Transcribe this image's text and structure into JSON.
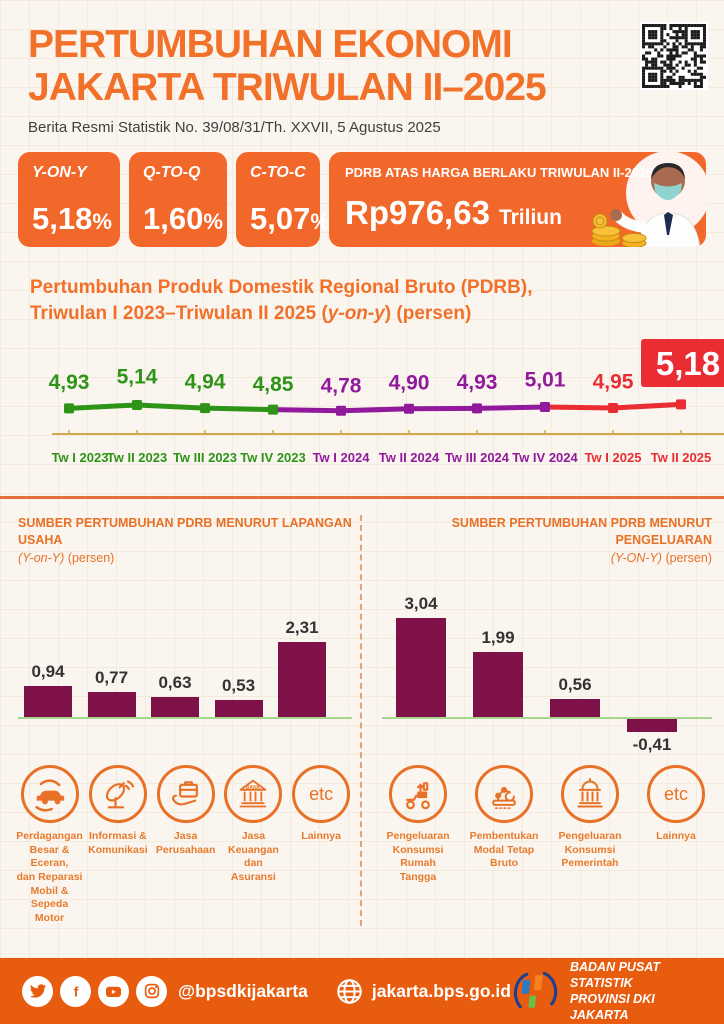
{
  "header": {
    "title_line1": "PERTUMBUHAN EKONOMI",
    "title_line2": "JAKARTA TRIWULAN II–2025",
    "subtitle": "Berita Resmi Statistik No. 39/08/31/Th. XXVII, 5 Agustus 2025"
  },
  "stats": [
    {
      "label": "Y-ON-Y",
      "value": "5,18",
      "suffix": "%"
    },
    {
      "label": "Q-TO-Q",
      "value": "1,60",
      "suffix": "%"
    },
    {
      "label": "C-TO-C",
      "value": "5,07",
      "suffix": "%"
    }
  ],
  "pdrb": {
    "label": "PDRB ATAS HARGA BERLAKU TRIWULAN II-2025",
    "amount": "Rp976,63",
    "unit": "Triliun"
  },
  "line_section": {
    "title_line1": "Pertumbuhan Produk Domestik Regional Bruto (PDRB),",
    "title_line2_pre": "Triwulan I 2023–Triwulan II 2025 (",
    "title_line2_italic": "y-on-y",
    "title_line2_post": ") (persen)"
  },
  "colors": {
    "accent_orange": "#f1702a",
    "footer_orange": "#e85c0f",
    "bar_maroon": "#7d1148",
    "green_2023": "#2e9418",
    "purple_2024": "#911a9c",
    "red_2025": "#ea2c33",
    "axis_tan": "#d0a84e",
    "baseline_green": "#a9d68f"
  },
  "chart_data": [
    {
      "type": "line",
      "title": "Pertumbuhan Produk Domestik Regional Bruto (PDRB), Triwulan I 2023–Triwulan II 2025 (y-on-y) (persen)",
      "categories": [
        "Tw I 2023",
        "Tw II 2023",
        "Tw III 2023",
        "Tw IV 2023",
        "Tw I 2024",
        "Tw II 2024",
        "Tw III 2024",
        "Tw IV 2024",
        "Tw I 2025",
        "Tw II 2025"
      ],
      "values": [
        4.93,
        5.14,
        4.94,
        4.85,
        4.78,
        4.9,
        4.93,
        5.01,
        4.95,
        5.18
      ],
      "labels": [
        "4,93",
        "5,14",
        "4,94",
        "4,85",
        "4,78",
        "4,90",
        "4,93",
        "5,01",
        "4,95",
        "5,18"
      ],
      "groups": [
        {
          "name": "2023",
          "from": 0,
          "to": 3,
          "color": "#2e9418"
        },
        {
          "name": "2024",
          "from": 3,
          "to": 7,
          "color": "#911a9c"
        },
        {
          "name": "2025",
          "from": 7,
          "to": 9,
          "color": "#ea2c33"
        }
      ],
      "highlight_last": true,
      "axis_color": "#d0a84e",
      "ylim": [
        4.5,
        5.3
      ],
      "legend": "none",
      "grid": false
    },
    {
      "type": "bar",
      "title": "SUMBER PERTUMBUHAN PDRB MENURUT LAPANGAN USAHA",
      "subtitle": "(Y-on-Y) (persen)",
      "categories": [
        "Perdagangan Besar & Eceran, dan Reparasi Mobil & Sepeda Motor",
        "Informasi & Komunikasi",
        "Jasa Perusahaan",
        "Jasa Keuangan dan Asuransi",
        "Lainnya"
      ],
      "values": [
        0.94,
        0.77,
        0.63,
        0.53,
        2.31
      ],
      "labels": [
        "0,94",
        "0,77",
        "0,63",
        "0,53",
        "2,31"
      ],
      "bar_color": "#7d1148",
      "ylim": [
        0,
        2.5
      ],
      "grid": false
    },
    {
      "type": "bar",
      "title": "SUMBER PERTUMBUHAN PDRB MENURUT PENGELUARAN",
      "subtitle": "(Y-ON-Y) (persen)",
      "categories": [
        "Pengeluaran Konsumsi Rumah Tangga",
        "Pembentukan Modal Tetap Bruto",
        "Pengeluaran Konsumsi Pemerintah",
        "Lainnya"
      ],
      "values": [
        3.04,
        1.99,
        0.56,
        -0.41
      ],
      "labels": [
        "3,04",
        "1,99",
        "0,56",
        "-0,41"
      ],
      "bar_color": "#7d1148",
      "ylim": [
        -0.6,
        3.3
      ],
      "grid": false
    }
  ],
  "left_chart": {
    "title": "SUMBER PERTUMBUHAN PDRB MENURUT LAPANGAN USAHA",
    "subtitle_italic": "(Y-on-Y)",
    "subtitle_rest": " (persen)",
    "etc_text": "etc",
    "icon_labels": [
      "Perdagangan\nBesar & Eceran,\ndan Reparasi\nMobil &\nSepeda Motor",
      "Informasi &\nKomunikasi",
      "Jasa\nPerusahaan",
      "Jasa\nKeuangan\ndan\nAsuransi",
      "Lainnya"
    ]
  },
  "right_chart": {
    "title": "SUMBER PERTUMBUHAN PDRB MENURUT PENGELUARAN",
    "subtitle_italic": "(Y-ON-Y)",
    "subtitle_rest": " (persen)",
    "etc_text": "etc",
    "icon_labels": [
      "Pengeluaran\nKonsumsi\nRumah Tangga",
      "Pembentukan\nModal Tetap Bruto",
      "Pengeluaran\nKonsumsi\nPemerintah",
      "Lainnya"
    ]
  },
  "footer": {
    "handle": "@bpsdkijakarta",
    "website": "jakarta.bps.go.id",
    "org_line1": "BADAN PUSAT STATISTIK",
    "org_line2": "PROVINSI DKI JAKARTA"
  }
}
